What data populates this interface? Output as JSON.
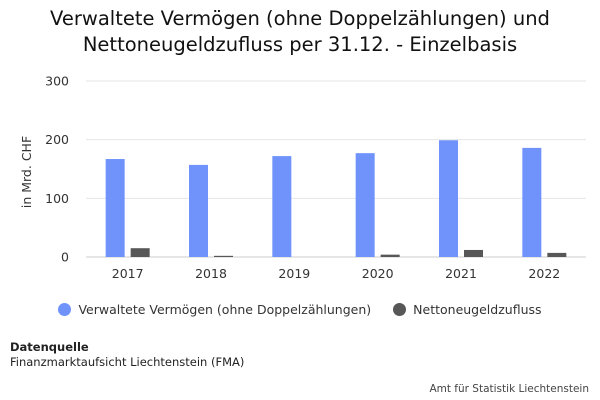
{
  "title": {
    "line1": "Verwaltete Vermögen (ohne Doppelzählungen) und",
    "line2": "Nettoneugeldzufluss per 31.12. - Einzelbasis"
  },
  "chart_data": {
    "type": "bar",
    "categories": [
      "2017",
      "2018",
      "2019",
      "2020",
      "2021",
      "2022"
    ],
    "series": [
      {
        "name": "Verwaltete Vermögen (ohne Doppelzählungen)",
        "color": "#6f93fb",
        "values": [
          167,
          157,
          172,
          177,
          199,
          186
        ]
      },
      {
        "name": "Nettoneugeldzufluss",
        "color": "#575757",
        "values": [
          15,
          2,
          0,
          4,
          12,
          7
        ]
      }
    ],
    "ylabel": "in Mrd. CHF",
    "ylim": [
      0,
      300
    ],
    "yticks": [
      "0",
      "100",
      "200",
      "300"
    ],
    "grid": true,
    "legend": "bottom"
  },
  "source": {
    "heading": "Datenquelle",
    "text": "Finanzmarktaufsicht Liechtenstein (FMA)"
  },
  "credit": "Amt für Statistik Liechtenstein"
}
